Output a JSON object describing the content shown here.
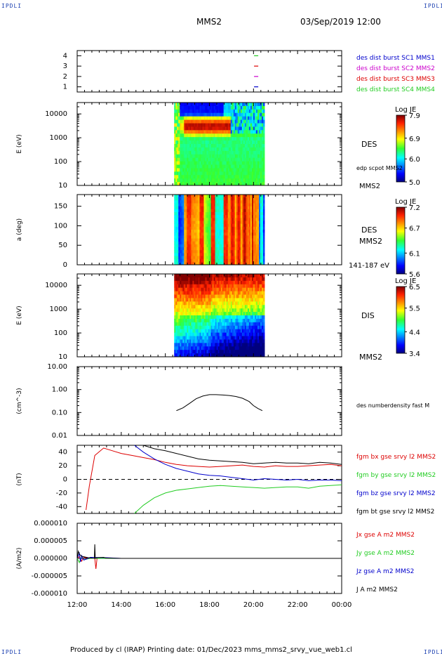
{
  "page": {
    "corner_label": "IPDLI",
    "header_title": "MMS2",
    "header_date": "03/Sep/2019 12:00",
    "footer": "Produced by cl (IRAP)   Printing date: 01/Dec/2023   mms_mms2_srvy_vue_web1.cl"
  },
  "x_axis": {
    "ticks": [
      "12:00",
      "14:00",
      "16:00",
      "18:00",
      "20:00",
      "22:00",
      "00:00"
    ],
    "range_hours": [
      12,
      24
    ]
  },
  "colors": {
    "red": "#dd0000",
    "green": "#22cc22",
    "blue": "#0000cc",
    "black": "#000000",
    "magenta": "#cc00cc",
    "darkblue": "#0000aa"
  },
  "chart_data": [
    {
      "type": "scatter",
      "panel": "burst",
      "ylim": [
        0.5,
        4.5
      ],
      "yticks": [
        "1",
        "2",
        "3",
        "4"
      ],
      "legend": [
        {
          "label": "des dist burst SC1 MMS1",
          "color": "#0000cc"
        },
        {
          "label": "des dist burst SC2 MMS2",
          "color": "#cc00cc"
        },
        {
          "label": "des dist burst SC3 MMS3",
          "color": "#dd0000"
        },
        {
          "label": "des dist burst SC4 MMS4",
          "color": "#22cc22"
        }
      ],
      "marks": [
        {
          "t": 20.12,
          "y": 4,
          "color": "#22cc22"
        },
        {
          "t": 20.12,
          "y": 3,
          "color": "#dd0000"
        },
        {
          "t": 20.12,
          "y": 2,
          "color": "#cc00cc"
        },
        {
          "t": 20.12,
          "y": 1,
          "color": "#0000cc"
        }
      ]
    },
    {
      "type": "heatmap",
      "panel": "des_energy",
      "ylabel": "E (eV)",
      "yscale": "log",
      "ylim": [
        10,
        30000
      ],
      "yticks": [
        "10",
        "100",
        "1000",
        "10000"
      ],
      "side_label": "DES",
      "side_label2": "edp scpot MMS2",
      "side_label3": "MMS2",
      "data_range_hours": [
        16.4,
        20.5
      ],
      "colorbar": {
        "title": "Log JE",
        "ticks": [
          "7.9",
          "6.9",
          "6.0",
          "5.0"
        ],
        "min": 5.0,
        "max": 7.9
      }
    },
    {
      "type": "heatmap",
      "panel": "des_pitch",
      "ylabel": "a (deg)",
      "ylim": [
        0,
        180
      ],
      "yticks": [
        "0",
        "50",
        "100",
        "150"
      ],
      "side_label": "DES",
      "side_label2": "MMS2",
      "side_label3": "141-187 eV",
      "data_range_hours": [
        16.4,
        20.5
      ],
      "colorbar": {
        "title": "Log JE",
        "ticks": [
          "7.2",
          "6.7",
          "6.1",
          "5.6"
        ],
        "min": 5.6,
        "max": 7.2
      }
    },
    {
      "type": "heatmap",
      "panel": "dis_energy",
      "ylabel": "E (eV)",
      "yscale": "log",
      "ylim": [
        10,
        30000
      ],
      "yticks": [
        "10",
        "100",
        "1000",
        "10000"
      ],
      "side_label": "DIS",
      "side_label2": "MMS2",
      "data_range_hours": [
        16.4,
        20.5
      ],
      "colorbar": {
        "title": "Log JE",
        "ticks": [
          "6.5",
          "5.5",
          "4.4",
          "3.4"
        ],
        "min": 3.4,
        "max": 6.5
      }
    },
    {
      "type": "line",
      "panel": "density",
      "ylabel": "(cm^-3)",
      "yscale": "log",
      "ylim": [
        0.01,
        10
      ],
      "yticks": [
        "0.01",
        "0.10",
        "1.00",
        "10.00"
      ],
      "series": [
        {
          "name": "des numberdensity fast M",
          "color": "#000000",
          "x": [
            16.5,
            16.8,
            17.1,
            17.4,
            17.7,
            18.0,
            18.3,
            18.6,
            18.9,
            19.2,
            19.5,
            19.8,
            20.0,
            20.2,
            20.4
          ],
          "y": [
            0.12,
            0.16,
            0.25,
            0.4,
            0.52,
            0.6,
            0.6,
            0.58,
            0.55,
            0.5,
            0.42,
            0.3,
            0.2,
            0.15,
            0.12
          ]
        }
      ]
    },
    {
      "type": "line",
      "panel": "fgm",
      "ylabel": "(nT)",
      "ylim": [
        -50,
        50
      ],
      "yticks": [
        "-40",
        "-20",
        "0",
        "20",
        "40"
      ],
      "zero_line": true,
      "series": [
        {
          "name": "fgm bx gse srvy l2 MMS2",
          "color": "#dd0000",
          "x": [
            12.4,
            12.55,
            12.8,
            13.2,
            13.6,
            14.0,
            14.5,
            15.0,
            15.5,
            16.0,
            16.5,
            17.0,
            17.5,
            18.0,
            18.5,
            19.0,
            19.5,
            20.0,
            20.5,
            21.0,
            21.5,
            22.0,
            22.5,
            23.0,
            23.5,
            24.0
          ],
          "y": [
            -45,
            -10,
            35,
            46,
            42,
            38,
            35,
            32,
            29,
            25,
            22,
            20,
            19,
            18,
            19,
            20,
            21,
            19,
            18,
            20,
            19,
            19,
            20,
            21,
            22,
            20
          ]
        },
        {
          "name": "fgm by gse srvy l2 MMS2",
          "color": "#22cc22",
          "x": [
            14.6,
            15.0,
            15.5,
            16.0,
            16.5,
            17.0,
            17.5,
            18.0,
            18.5,
            19.0,
            19.5,
            20.0,
            20.5,
            21.0,
            21.5,
            22.0,
            22.5,
            23.0,
            23.5,
            24.0
          ],
          "y": [
            -50,
            -38,
            -27,
            -20,
            -16,
            -14,
            -12,
            -10,
            -9,
            -10,
            -11,
            -12,
            -13,
            -12,
            -11,
            -11,
            -13,
            -10,
            -9,
            -8
          ]
        },
        {
          "name": "fgm bz gse srvy l2 MMS2",
          "color": "#0000cc",
          "x": [
            14.6,
            15.0,
            15.5,
            16.0,
            16.5,
            17.0,
            17.5,
            18.0,
            18.5,
            19.0,
            19.5,
            20.0,
            20.5,
            21.0,
            21.5,
            22.0,
            22.5,
            23.0,
            23.5,
            24.0
          ],
          "y": [
            50,
            40,
            30,
            22,
            16,
            12,
            8,
            6,
            5,
            3,
            1,
            -1,
            1,
            0,
            -1,
            0,
            -2,
            -1,
            -1,
            -2
          ]
        },
        {
          "name": "fgm bt gse srvy l2 MMS2",
          "color": "#000000",
          "x": [
            15.0,
            15.5,
            16.0,
            16.5,
            17.0,
            17.5,
            18.0,
            18.5,
            19.0,
            19.5,
            20.0,
            20.5,
            21.0,
            21.5,
            22.0,
            22.5,
            23.0,
            23.5,
            24.0
          ],
          "y": [
            50,
            45,
            42,
            38,
            34,
            30,
            28,
            27,
            26,
            25,
            23,
            24,
            25,
            24,
            24,
            23,
            25,
            24,
            22
          ]
        }
      ]
    },
    {
      "type": "line",
      "panel": "current",
      "ylabel": "(A/m2)",
      "ylim": [
        -1e-05,
        1e-05
      ],
      "yticks": [
        "-0.000010",
        "-0.000005",
        "0.000000",
        "0.000005",
        "0.000010"
      ],
      "series": [
        {
          "name": "Jx gse A m2 MMS2",
          "color": "#dd0000",
          "x": [
            12.0,
            12.1,
            12.2,
            12.3,
            12.6,
            12.8,
            12.85,
            12.9,
            13.2,
            14.0,
            24.0
          ],
          "y": [
            0,
            5e-07,
            -8e-07,
            3e-07,
            0,
            0,
            -3e-06,
            0,
            0,
            0,
            0
          ]
        },
        {
          "name": "Jy gse A m2 MMS2",
          "color": "#22cc22",
          "x": [
            12.0,
            12.1,
            12.2,
            12.3,
            12.6,
            13.0,
            14.0,
            24.0
          ],
          "y": [
            0,
            -1.2e-06,
            6e-07,
            -4e-07,
            0,
            0,
            0,
            0
          ]
        },
        {
          "name": "Jz gse A m2 MMS2",
          "color": "#0000cc",
          "x": [
            12.0,
            12.1,
            12.15,
            12.2,
            12.3,
            12.6,
            13.3,
            14.0,
            24.0
          ],
          "y": [
            0,
            1.5e-06,
            -1e-06,
            8e-07,
            -5e-07,
            3e-07,
            2e-07,
            0,
            0
          ]
        },
        {
          "name": "J  A m2 MMS2",
          "color": "#000000",
          "x": [
            12.0,
            12.05,
            12.1,
            12.2,
            12.5,
            12.78,
            12.8,
            12.82,
            12.9,
            13.2,
            13.3,
            14.0,
            24.0
          ],
          "y": [
            0,
            2e-06,
            1.2e-06,
            6e-07,
            2e-07,
            0,
            4e-06,
            0,
            2e-07,
            3e-07,
            1e-07,
            0,
            0
          ]
        }
      ]
    }
  ]
}
